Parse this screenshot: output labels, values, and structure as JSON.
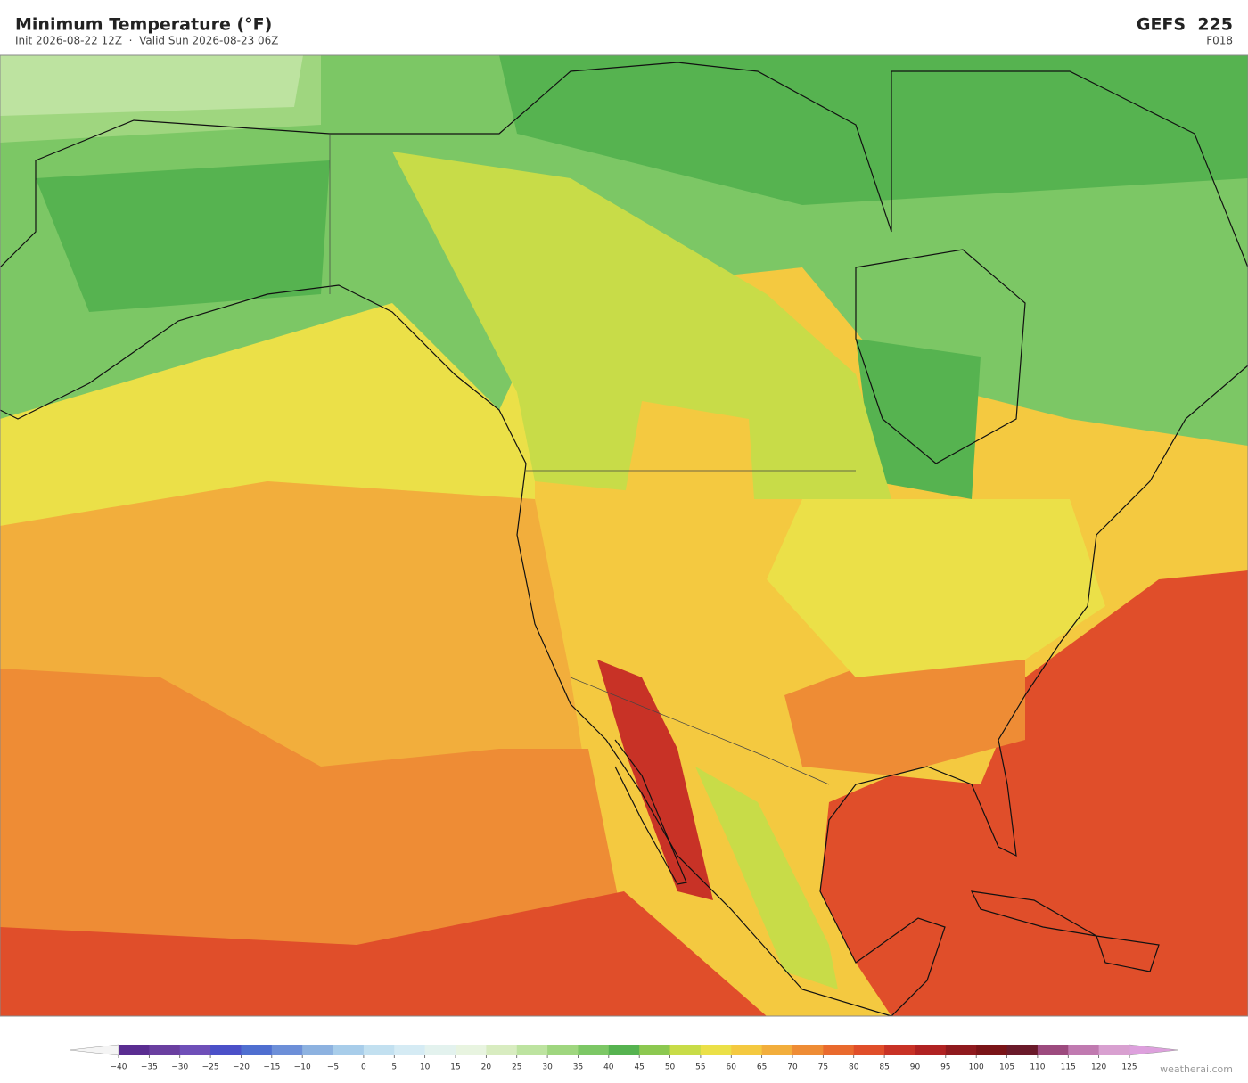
{
  "header": {
    "title": "Minimum Temperature  (°F)",
    "subtitle": "Init 2026-08-22 12Z  ·  Valid Sun 2026-08-23 06Z",
    "model": "GEFS  225",
    "forecast_hour": "F018"
  },
  "colorbar": {
    "ticks": [
      {
        "value": -40,
        "label": "−40"
      },
      {
        "value": -35,
        "label": "−35"
      },
      {
        "value": -30,
        "label": "−30"
      },
      {
        "value": -25,
        "label": "−25"
      },
      {
        "value": -20,
        "label": "−20"
      },
      {
        "value": -15,
        "label": "−15"
      },
      {
        "value": -10,
        "label": "−10"
      },
      {
        "value": -5,
        "label": "−5"
      },
      0,
      5,
      10,
      15,
      20,
      25,
      30,
      35,
      40,
      45,
      50,
      55,
      60,
      65,
      70,
      75,
      80,
      85,
      90,
      95,
      100,
      105,
      110,
      115,
      120,
      125
    ],
    "colors": [
      "#5a2d91",
      "#6a3fa0",
      "#6f4fb8",
      "#4b50c8",
      "#4f6fd0",
      "#6d8fd8",
      "#8db2e0",
      "#a8cdea",
      "#c2e0f0",
      "#d5ebf4",
      "#e3f2ee",
      "#e8f4e0",
      "#d8ecc0",
      "#bde3a0",
      "#9fd67f",
      "#7cc765",
      "#56b350",
      "#8cc850",
      "#c8dc48",
      "#ebe048",
      "#f4c940",
      "#f2ae3c",
      "#ee8c35",
      "#e96a2e",
      "#e04e2a",
      "#c83226",
      "#b02222",
      "#8f1a1e",
      "#7a1418",
      "#6a1a2a",
      "#9c4a7e",
      "#c07ab0",
      "#d8a0d0"
    ],
    "under_color": "#f4f4f4",
    "over_color": "#dda0dd"
  },
  "watermark": "weatherai.com"
}
